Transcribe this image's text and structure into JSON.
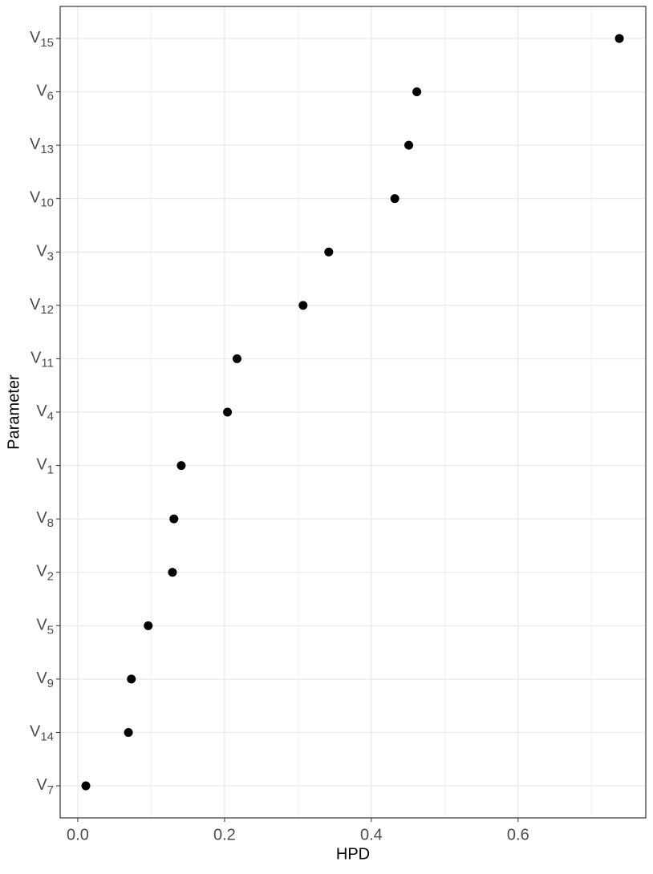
{
  "chart_data": {
    "type": "scatter",
    "x_label": "HPD",
    "y_label": "Parameter",
    "categories": [
      "V7",
      "V14",
      "V9",
      "V5",
      "V2",
      "V8",
      "V1",
      "V4",
      "V11",
      "V12",
      "V3",
      "V10",
      "V13",
      "V6",
      "V15"
    ],
    "values": [
      0.011,
      0.069,
      0.073,
      0.096,
      0.129,
      0.131,
      0.141,
      0.204,
      0.217,
      0.307,
      0.342,
      0.432,
      0.451,
      0.462,
      0.738
    ],
    "color": "#000000",
    "xlim": [
      -0.024,
      0.774
    ],
    "xticks": [
      {
        "value": 0,
        "label": "0.0"
      },
      0.2,
      0.4,
      0.6
    ],
    "x_minor_ticks": [
      0.1,
      0.3,
      0.5,
      0.7
    ],
    "grid": true
  }
}
